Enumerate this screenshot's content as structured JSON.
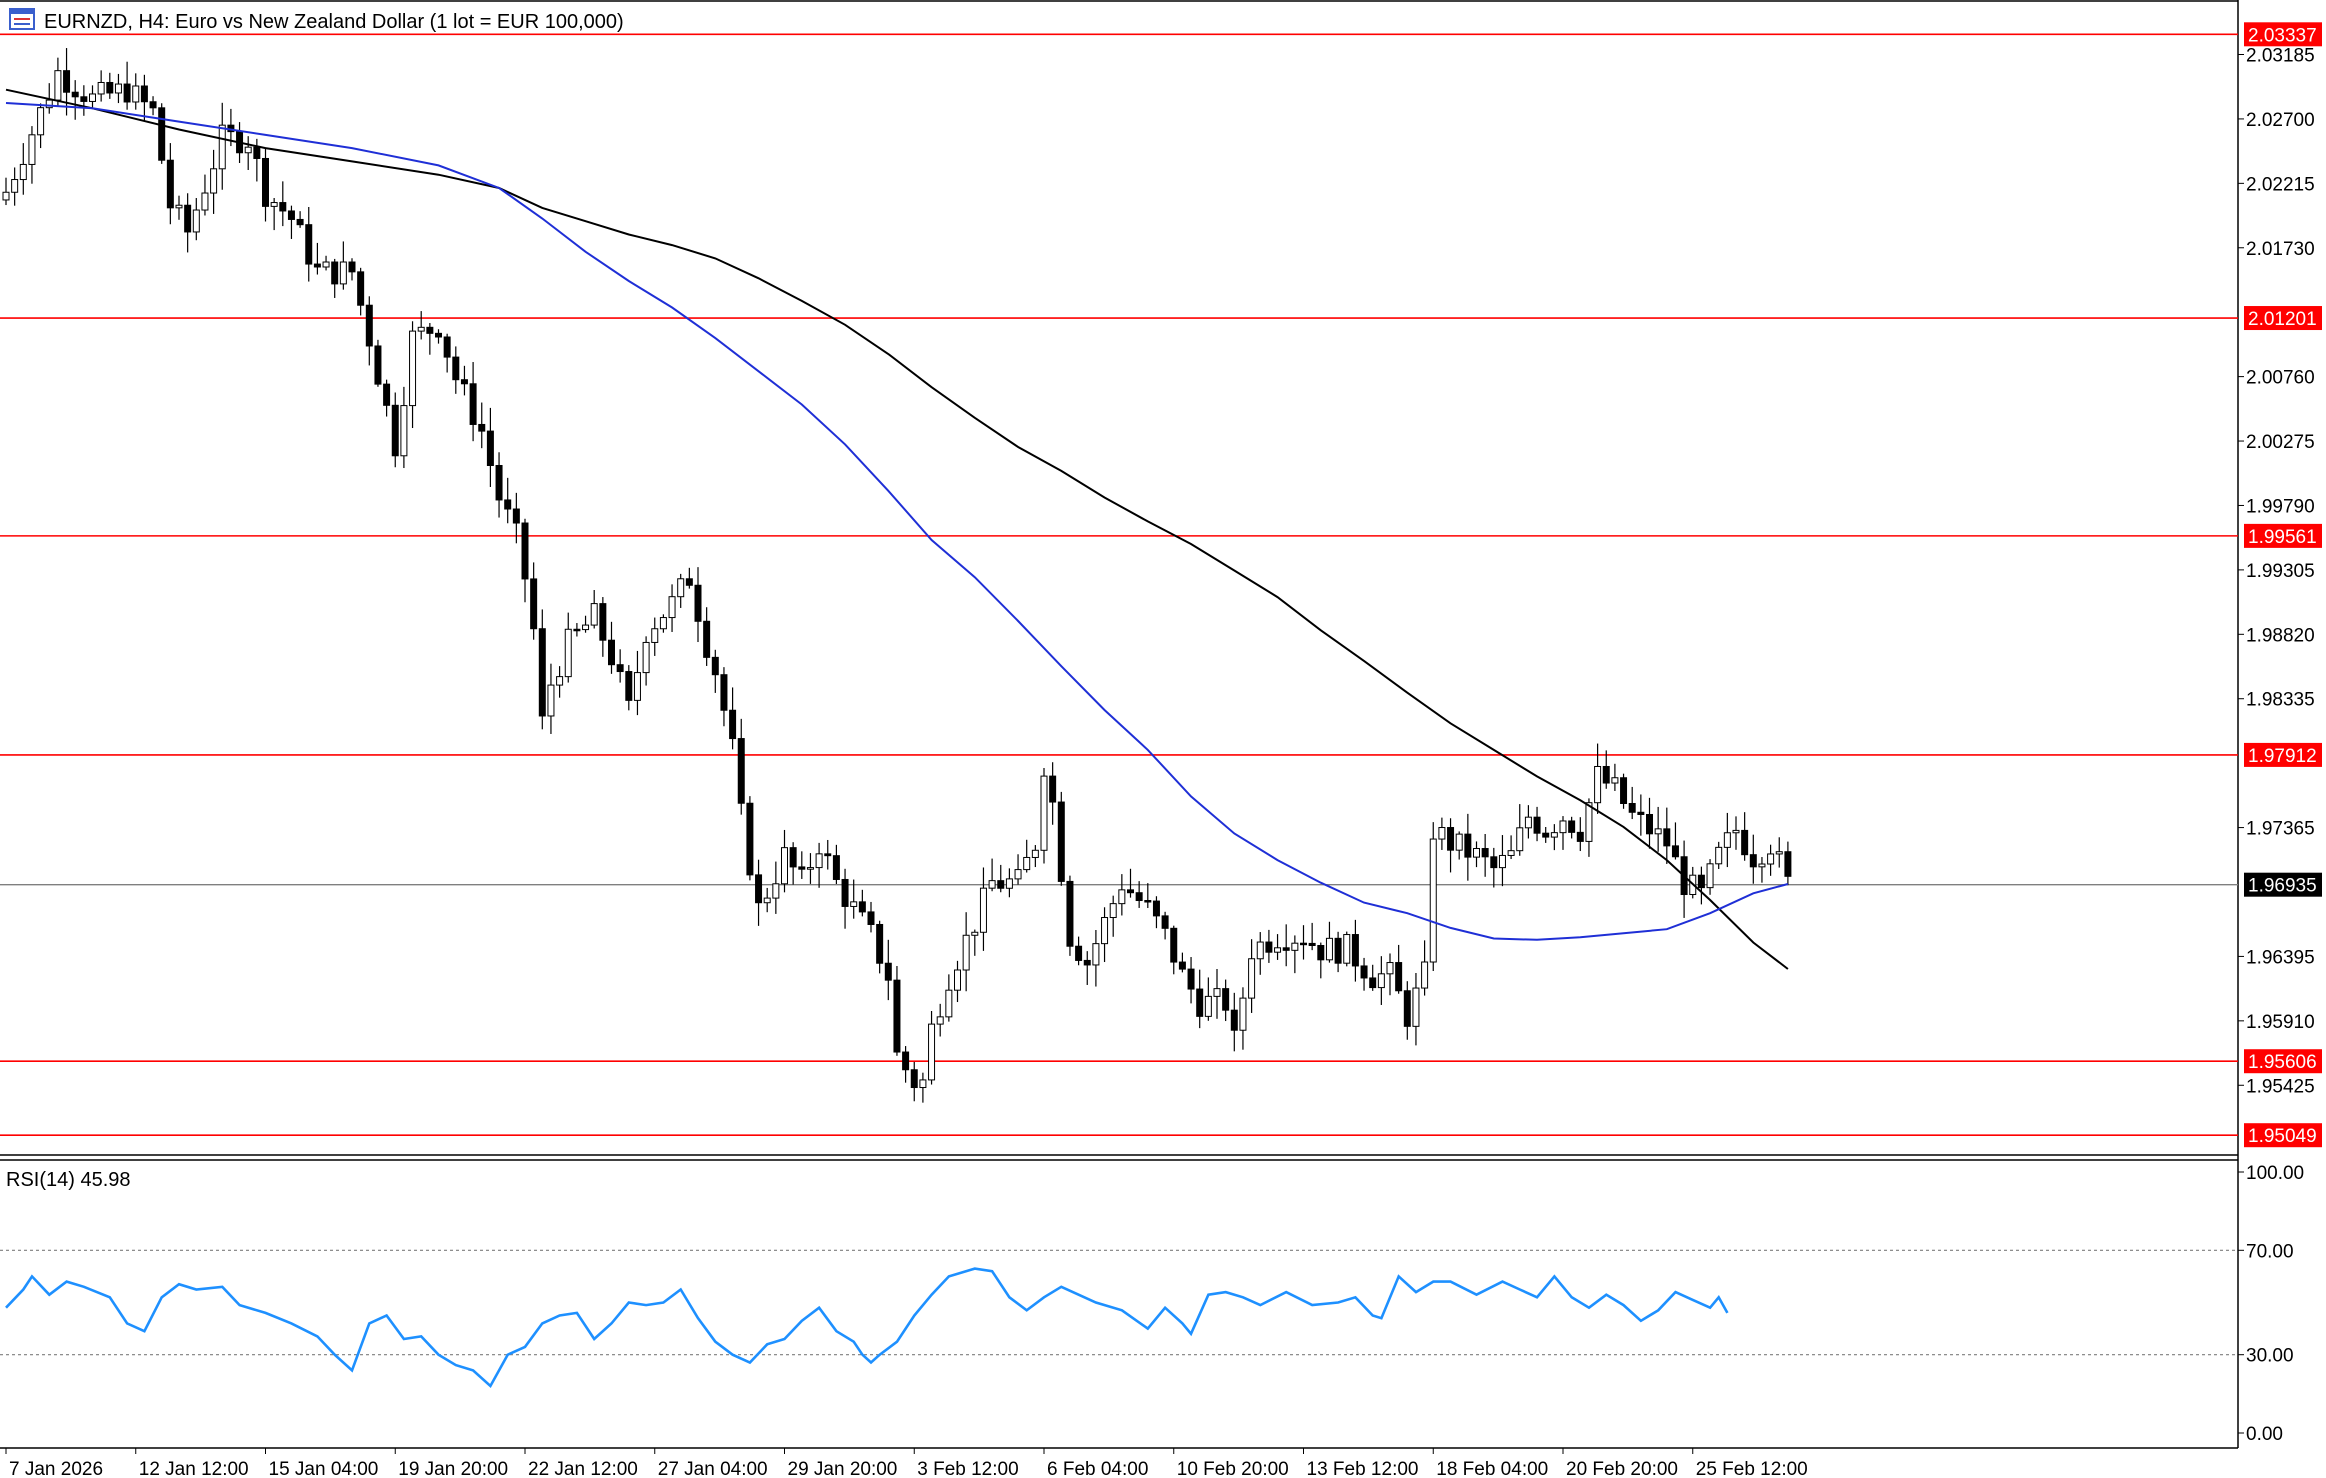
{
  "window": {
    "symbol_title": "EURNZD, H4:  Euro vs New Zealand Dollar (1 lot = EUR 100,000)",
    "icon": "chart-window-icon"
  },
  "colors": {
    "background": "#ffffff",
    "bull_candle": "#ffffff",
    "bear_candle": "#000000",
    "candle_outline": "#000000",
    "ma_fast": "#1f2fd6",
    "ma_slow": "#000000",
    "level_line": "#ff0000",
    "level_badge": "#ff0000",
    "current_price_line": "#7f7f7f",
    "current_price_badge": "#000000",
    "rsi_line": "#1e90ff",
    "rsi_levels": "#7f7f7f"
  },
  "chart_data": [
    {
      "type": "candlestick",
      "symbol": "EURNZD",
      "timeframe": "H4",
      "ylim": [
        1.949,
        2.0352
      ],
      "y_ticks": [
        "2.03185",
        "2.02700",
        "2.02215",
        "2.01730",
        "2.00760",
        "2.00275",
        "1.99790",
        "1.99305",
        "1.98820",
        "1.98335",
        "1.97365",
        "1.96395",
        "1.95910",
        "1.95425"
      ],
      "x_ticks": [
        "7 Jan 2026",
        "12 Jan 12:00",
        "15 Jan 04:00",
        "19 Jan 20:00",
        "22 Jan 12:00",
        "27 Jan 04:00",
        "29 Jan 20:00",
        "3 Feb 12:00",
        "6 Feb 04:00",
        "10 Feb 20:00",
        "13 Feb 12:00",
        "18 Feb 04:00",
        "20 Feb 20:00",
        "25 Feb 12:00"
      ],
      "x_tick_index": [
        0,
        15,
        30,
        45,
        60,
        75,
        90,
        105,
        120,
        135,
        150,
        165,
        180,
        195
      ],
      "levels": [
        "2.03337",
        "2.01201",
        "1.99561",
        "1.97912",
        "1.95606",
        "1.95049"
      ],
      "current_price": "1.96935",
      "close_path": [
        [
          0,
          2.0215
        ],
        [
          6,
          2.0305
        ],
        [
          10,
          2.0285
        ],
        [
          14,
          2.0292
        ],
        [
          17,
          2.0275
        ],
        [
          19,
          2.0205
        ],
        [
          21,
          2.0185
        ],
        [
          25,
          2.0255
        ],
        [
          28,
          2.0255
        ],
        [
          30,
          2.0215
        ],
        [
          33,
          2.0195
        ],
        [
          36,
          2.0155
        ],
        [
          40,
          2.0155
        ],
        [
          42,
          2.0105
        ],
        [
          45,
          2.0025
        ],
        [
          47,
          2.0105
        ],
        [
          50,
          2.0115
        ],
        [
          52,
          2.0075
        ],
        [
          55,
          2.0035
        ],
        [
          57,
          1.9985
        ],
        [
          59,
          1.9955
        ],
        [
          60,
          1.9925
        ],
        [
          61,
          1.9885
        ],
        [
          62,
          1.9815
        ],
        [
          63,
          1.9845
        ],
        [
          65,
          1.9875
        ],
        [
          68,
          1.9895
        ],
        [
          70,
          1.9865
        ],
        [
          72,
          1.9825
        ],
        [
          74,
          1.9885
        ],
        [
          77,
          1.9905
        ],
        [
          79,
          1.9925
        ],
        [
          81,
          1.9875
        ],
        [
          82,
          1.9855
        ],
        [
          84,
          1.9795
        ],
        [
          85,
          1.9745
        ],
        [
          87,
          1.9675
        ],
        [
          90,
          1.9715
        ],
        [
          92,
          1.9695
        ],
        [
          94,
          1.9725
        ],
        [
          96,
          1.9695
        ],
        [
          98,
          1.9675
        ],
        [
          100,
          1.9655
        ],
        [
          102,
          1.9625
        ],
        [
          103,
          1.9565
        ],
        [
          105,
          1.9545
        ],
        [
          106,
          1.9545
        ],
        [
          107,
          1.9585
        ],
        [
          109,
          1.9625
        ],
        [
          112,
          1.9665
        ],
        [
          114,
          1.9695
        ],
        [
          117,
          1.9695
        ],
        [
          119,
          1.9725
        ],
        [
          120,
          1.9785
        ],
        [
          121,
          1.9755
        ],
        [
          123,
          1.9655
        ],
        [
          125,
          1.9635
        ],
        [
          127,
          1.9665
        ],
        [
          129,
          1.9695
        ],
        [
          132,
          1.9675
        ],
        [
          134,
          1.9655
        ],
        [
          136,
          1.9625
        ],
        [
          138,
          1.9605
        ],
        [
          141,
          1.9605
        ],
        [
          142,
          1.9575
        ],
        [
          144,
          1.9645
        ],
        [
          147,
          1.9655
        ],
        [
          150,
          1.9655
        ],
        [
          152,
          1.9645
        ],
        [
          155,
          1.9645
        ],
        [
          158,
          1.9625
        ],
        [
          160,
          1.9625
        ],
        [
          162,
          1.9595
        ],
        [
          164,
          1.9625
        ],
        [
          165,
          1.9735
        ],
        [
          167,
          1.9725
        ],
        [
          170,
          1.9715
        ],
        [
          172,
          1.9705
        ],
        [
          174,
          1.9715
        ],
        [
          176,
          1.9745
        ],
        [
          178,
          1.9735
        ],
        [
          180,
          1.9745
        ],
        [
          182,
          1.9735
        ],
        [
          184,
          1.9775
        ],
        [
          186,
          1.9765
        ],
        [
          188,
          1.9745
        ],
        [
          190,
          1.9735
        ],
        [
          192,
          1.9725
        ],
        [
          194,
          1.9695
        ],
        [
          196,
          1.9685
        ],
        [
          198,
          1.9715
        ],
        [
          200,
          1.9735
        ],
        [
          202,
          1.9715
        ],
        [
          204,
          1.9725
        ],
        [
          206,
          1.9694
        ]
      ],
      "ma_fast_path": [
        [
          0,
          2.0282
        ],
        [
          10,
          2.0278
        ],
        [
          20,
          2.0268
        ],
        [
          30,
          2.0258
        ],
        [
          40,
          2.0248
        ],
        [
          50,
          2.0235
        ],
        [
          57,
          2.0218
        ],
        [
          62,
          2.0195
        ],
        [
          67,
          2.017
        ],
        [
          72,
          2.0148
        ],
        [
          77,
          2.0128
        ],
        [
          82,
          2.0105
        ],
        [
          87,
          2.008
        ],
        [
          92,
          2.0055
        ],
        [
          97,
          2.0025
        ],
        [
          102,
          1.999
        ],
        [
          107,
          1.9953
        ],
        [
          112,
          1.9925
        ],
        [
          117,
          1.9892
        ],
        [
          122,
          1.9858
        ],
        [
          127,
          1.9825
        ],
        [
          132,
          1.9795
        ],
        [
          137,
          1.976
        ],
        [
          142,
          1.9732
        ],
        [
          147,
          1.9712
        ],
        [
          152,
          1.9695
        ],
        [
          157,
          1.968
        ],
        [
          162,
          1.9672
        ],
        [
          167,
          1.9661
        ],
        [
          172,
          1.9653
        ],
        [
          177,
          1.9652
        ],
        [
          182,
          1.9654
        ],
        [
          187,
          1.9657
        ],
        [
          192,
          1.966
        ],
        [
          197,
          1.9672
        ],
        [
          202,
          1.9687
        ],
        [
          206,
          1.9694
        ]
      ],
      "ma_slow_path": [
        [
          0,
          2.0292
        ],
        [
          10,
          2.0278
        ],
        [
          20,
          2.0262
        ],
        [
          30,
          2.0248
        ],
        [
          40,
          2.0238
        ],
        [
          50,
          2.0228
        ],
        [
          57,
          2.0218
        ],
        [
          62,
          2.0203
        ],
        [
          67,
          2.0193
        ],
        [
          72,
          2.0183
        ],
        [
          77,
          2.0175
        ],
        [
          82,
          2.0165
        ],
        [
          87,
          2.015
        ],
        [
          92,
          2.0133
        ],
        [
          97,
          2.0115
        ],
        [
          102,
          2.0093
        ],
        [
          107,
          2.0068
        ],
        [
          112,
          2.0045
        ],
        [
          117,
          2.0023
        ],
        [
          122,
          2.0005
        ],
        [
          127,
          1.9985
        ],
        [
          132,
          1.9967
        ],
        [
          137,
          1.995
        ],
        [
          142,
          1.993
        ],
        [
          147,
          1.991
        ],
        [
          152,
          1.9885
        ],
        [
          157,
          1.9862
        ],
        [
          162,
          1.9838
        ],
        [
          167,
          1.9815
        ],
        [
          172,
          1.9795
        ],
        [
          177,
          1.9775
        ],
        [
          182,
          1.9757
        ],
        [
          187,
          1.9737
        ],
        [
          192,
          1.9712
        ],
        [
          197,
          1.9682
        ],
        [
          202,
          1.965
        ],
        [
          206,
          1.963
        ]
      ]
    },
    {
      "type": "line",
      "indicator": "RSI",
      "label": "RSI(14) 45.98",
      "ylim": [
        0,
        100
      ],
      "y_ticks": [
        "100.00",
        "70.00",
        "30.00",
        "0.00"
      ],
      "levels": [
        70,
        30
      ],
      "path": [
        [
          0,
          48
        ],
        [
          2,
          55
        ],
        [
          3,
          60
        ],
        [
          5,
          53
        ],
        [
          7,
          58
        ],
        [
          9,
          56
        ],
        [
          12,
          52
        ],
        [
          14,
          42
        ],
        [
          16,
          39
        ],
        [
          18,
          52
        ],
        [
          20,
          57
        ],
        [
          22,
          55
        ],
        [
          25,
          56
        ],
        [
          27,
          49
        ],
        [
          30,
          46
        ],
        [
          33,
          42
        ],
        [
          36,
          37
        ],
        [
          38,
          30
        ],
        [
          40,
          24
        ],
        [
          42,
          42
        ],
        [
          44,
          45
        ],
        [
          46,
          36
        ],
        [
          48,
          37
        ],
        [
          50,
          30
        ],
        [
          52,
          26
        ],
        [
          54,
          24
        ],
        [
          56,
          18
        ],
        [
          58,
          30
        ],
        [
          60,
          33
        ],
        [
          62,
          42
        ],
        [
          64,
          45
        ],
        [
          66,
          46
        ],
        [
          68,
          36
        ],
        [
          70,
          42
        ],
        [
          72,
          50
        ],
        [
          74,
          49
        ],
        [
          76,
          50
        ],
        [
          78,
          55
        ],
        [
          80,
          44
        ],
        [
          82,
          35
        ],
        [
          84,
          30
        ],
        [
          86,
          27
        ],
        [
          88,
          34
        ],
        [
          90,
          36
        ],
        [
          92,
          43
        ],
        [
          94,
          48
        ],
        [
          96,
          39
        ],
        [
          98,
          35
        ],
        [
          99,
          30
        ],
        [
          100,
          27
        ],
        [
          101,
          30
        ],
        [
          103,
          35
        ],
        [
          105,
          45
        ],
        [
          107,
          53
        ],
        [
          109,
          60
        ],
        [
          112,
          63
        ],
        [
          114,
          62
        ],
        [
          116,
          52
        ],
        [
          118,
          47
        ],
        [
          120,
          52
        ],
        [
          122,
          56
        ],
        [
          124,
          53
        ],
        [
          126,
          50
        ],
        [
          129,
          47
        ],
        [
          132,
          40
        ],
        [
          134,
          48
        ],
        [
          136,
          42
        ],
        [
          137,
          38
        ],
        [
          139,
          53
        ],
        [
          141,
          54
        ],
        [
          143,
          52
        ],
        [
          145,
          49
        ],
        [
          148,
          54
        ],
        [
          151,
          49
        ],
        [
          154,
          50
        ],
        [
          156,
          52
        ],
        [
          158,
          45
        ],
        [
          159,
          44
        ],
        [
          161,
          60
        ],
        [
          163,
          54
        ],
        [
          165,
          58
        ],
        [
          167,
          58
        ],
        [
          170,
          53
        ],
        [
          173,
          58
        ],
        [
          175,
          55
        ],
        [
          177,
          52
        ],
        [
          179,
          60
        ],
        [
          181,
          52
        ],
        [
          183,
          48
        ],
        [
          185,
          53
        ],
        [
          187,
          49
        ],
        [
          189,
          43
        ],
        [
          191,
          47
        ],
        [
          193,
          54
        ],
        [
          195,
          51
        ],
        [
          197,
          48
        ],
        [
          198,
          52
        ],
        [
          199,
          46
        ]
      ]
    }
  ]
}
